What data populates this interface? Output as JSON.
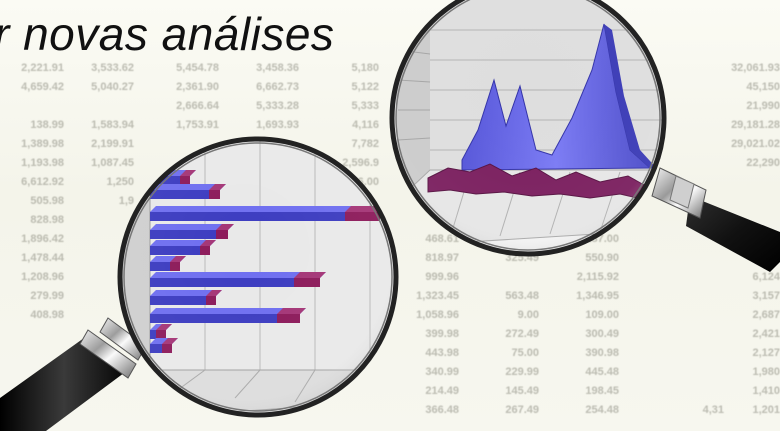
{
  "headline": "r novas análises",
  "spreadsheet": {
    "rows": [
      [
        "2,221.91",
        "3,533.62",
        "5,454.78",
        "3,458.36",
        "5,180",
        "",
        "",
        "",
        "",
        "",
        "32,061.93"
      ],
      [
        "4,659.42",
        "5,040.27",
        "2,361.90",
        "6,662.73",
        "5,122",
        "",
        "",
        "",
        "",
        "",
        "45,150"
      ],
      [
        "",
        "",
        "2,666.64",
        "5,333.28",
        "5,333",
        "",
        "",
        "",
        "",
        "",
        "21,990"
      ],
      [
        "138.99",
        "1,583.94",
        "1,753.91",
        "1,693.93",
        "4,116",
        "",
        "",
        "",
        "",
        "",
        "29,181.28"
      ],
      [
        "1,389.98",
        "2,199.91",
        "",
        "",
        "7,782",
        "",
        "",
        "",
        "",
        "",
        "29,021.02"
      ],
      [
        "1,193.98",
        "1,087.45",
        "",
        "",
        "2,596.9",
        "",
        "",
        "",
        "",
        "",
        "22,290"
      ],
      [
        "6,612.92",
        "1,250",
        "",
        "",
        "6.00",
        "",
        "",
        "",
        "",
        "",
        ""
      ],
      [
        "505.98",
        "1,9",
        "",
        "",
        "",
        "",
        "",
        "",
        "",
        "",
        ""
      ],
      [
        "828.98",
        "",
        "",
        "",
        "",
        "2,3",
        "",
        "",
        "",
        "",
        ""
      ],
      [
        "1,896.42",
        "",
        "",
        "",
        "",
        "468.61",
        "",
        "187.00",
        "",
        "",
        ""
      ],
      [
        "1,478.44",
        "",
        "",
        "",
        "",
        "818.97",
        "325.49",
        "550.90",
        "",
        "",
        "6,421"
      ],
      [
        "1,208.96",
        "",
        "",
        "",
        "",
        "999.96",
        "",
        "2,115.92",
        "",
        "",
        "6,124"
      ],
      [
        "279.99",
        "",
        "",
        "",
        "",
        "1,323.45",
        "563.48",
        "1,346.95",
        "",
        "",
        "3,157"
      ],
      [
        "408.98",
        "",
        "",
        "",
        "",
        "1,058.96",
        "9.00",
        "109.00",
        "",
        "",
        "2,687"
      ],
      [
        "",
        "",
        "",
        "",
        "",
        "399.98",
        "272.49",
        "300.49",
        "",
        "",
        "2,421"
      ],
      [
        "",
        "",
        "",
        "",
        "",
        "443.98",
        "75.00",
        "390.98",
        "",
        "",
        "2,127"
      ],
      [
        "",
        "",
        "",
        "",
        "",
        "340.99",
        "229.99",
        "445.48",
        "",
        "",
        "1,980"
      ],
      [
        "",
        "",
        "",
        "",
        "",
        "214.49",
        "145.49",
        "198.45",
        "",
        "",
        "1,410"
      ],
      [
        "",
        "",
        "",
        "",
        "",
        "366.48",
        "267.49",
        "254.48",
        "",
        "4,31",
        "1,201"
      ]
    ]
  },
  "colors": {
    "bar_top": "#6f6ff0",
    "bar_side": "#3c3cc0",
    "bar_end": "#8c1a5a",
    "peak_fill": "#6a6ae8",
    "ridge_fill": "#7a1e5e",
    "handle": "#1c1c1c",
    "grid_wall": "#e3e3e3"
  },
  "icons": {
    "left_glass": "magnifying-glass-icon",
    "right_glass": "magnifying-glass-icon"
  }
}
